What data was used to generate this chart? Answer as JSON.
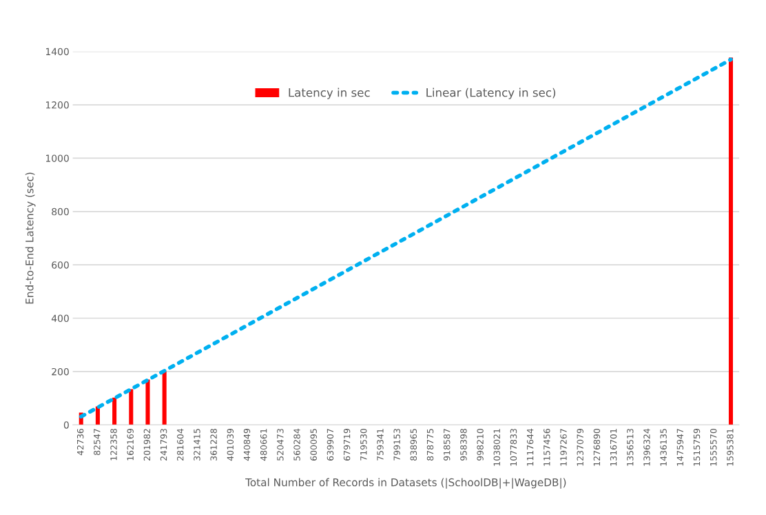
{
  "chart_data": {
    "type": "bar",
    "xlabel": "Total Number of Records in Datasets (|SchoolDB|+|WageDB|)",
    "ylabel": "End-to-End Latency (sec)",
    "categories": [
      "42736",
      "82547",
      "122358",
      "162169",
      "201982",
      "241793",
      "281604",
      "321415",
      "361228",
      "401039",
      "440849",
      "480661",
      "520473",
      "560284",
      "600095",
      "639907",
      "679719",
      "719530",
      "759341",
      "799153",
      "838965",
      "878775",
      "918587",
      "958398",
      "998210",
      "1038021",
      "1077833",
      "1117644",
      "1157456",
      "1197267",
      "1237079",
      "1276890",
      "1316701",
      "1356513",
      "1396324",
      "1436135",
      "1475947",
      "1515759",
      "1555570",
      "1595381"
    ],
    "series": [
      {
        "name": "Latency in sec",
        "color": "#ff0000",
        "values": [
          46,
          69,
          102,
          134,
          170,
          201,
          null,
          null,
          null,
          null,
          null,
          null,
          null,
          null,
          null,
          null,
          null,
          null,
          null,
          null,
          null,
          null,
          null,
          null,
          null,
          null,
          null,
          null,
          null,
          null,
          null,
          null,
          null,
          null,
          null,
          null,
          null,
          null,
          null,
          1377
        ]
      },
      {
        "name": "Linear (Latency in sec)",
        "type": "line",
        "color": "#00b0f0",
        "line_style": "dotted",
        "x": [
          "42736",
          "1595381"
        ],
        "values": [
          31,
          1370
        ]
      }
    ],
    "ylim": [
      0,
      1400
    ],
    "yticks": [
      0,
      200,
      400,
      600,
      800,
      1000,
      1200,
      1400
    ],
    "grid": "y",
    "legend": "top"
  }
}
